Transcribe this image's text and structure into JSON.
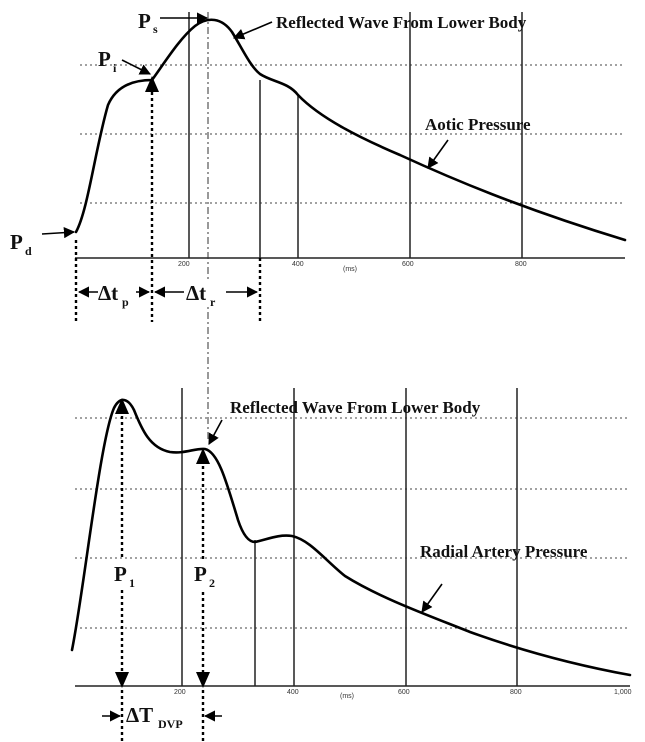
{
  "chart_data": [
    {
      "type": "line",
      "series": [
        {
          "name": "",
          "x": [
            0,
            40,
            80,
            110,
            130,
            160,
            200,
            230,
            260,
            300,
            350,
            400,
            500,
            600,
            700,
            800,
            900
          ],
          "y": [
            0.1,
            0.42,
            0.6,
            0.64,
            0.72,
            0.9,
            1.0,
            0.97,
            0.76,
            0.74,
            0.62,
            0.5,
            0.38,
            0.28,
            0.2,
            0.14,
            0.07
          ]
        }
      ],
      "xticks": [
        "200",
        "400",
        "600",
        "800"
      ],
      "xunit": "(ms)",
      "labels": {
        "Ps": "P",
        "Ps_sub": "s",
        "Pi": "P",
        "Pi_sub": "i",
        "Pd": "P",
        "Pd_sub": "d",
        "reflected": "Reflected Wave From Lower Body",
        "curve_name": "Aotic Pressure",
        "dtp": "Δt",
        "dtp_sub": "p",
        "dtr": "Δt",
        "dtr_sub": "r"
      }
    },
    {
      "type": "line",
      "series": [
        {
          "name": "",
          "x": [
            0,
            40,
            90,
            140,
            180,
            220,
            250,
            280,
            320,
            380,
            460,
            560,
            680,
            800,
            900,
            960
          ],
          "y": [
            0.08,
            0.6,
            1.0,
            0.78,
            0.76,
            0.79,
            0.74,
            0.52,
            0.46,
            0.48,
            0.38,
            0.28,
            0.18,
            0.1,
            0.04,
            0.02
          ]
        }
      ],
      "xticks": [
        "200",
        "400",
        "600",
        "800",
        "1,000"
      ],
      "xunit": "(ms)",
      "labels": {
        "P1": "P",
        "P1_sub": "1",
        "P2": "P",
        "P2_sub": "2",
        "reflected": "Reflected Wave From Lower Body",
        "curve_name": "Radial Artery Pressure",
        "dT": "ΔT",
        "dT_sub": "DVP"
      }
    }
  ]
}
